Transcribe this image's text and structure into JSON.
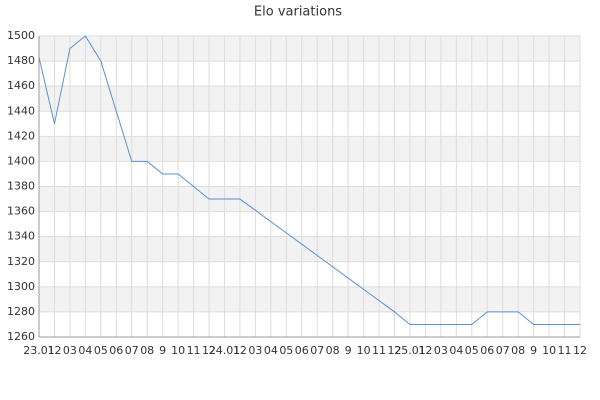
{
  "chart_data": {
    "type": "line",
    "title": "Elo variations",
    "categories": [
      "23.01",
      "12",
      "03",
      "04",
      "05",
      "06",
      "07",
      "08",
      "9",
      "10",
      "11",
      "12",
      "24.01",
      "12",
      "03",
      "04",
      "05",
      "06",
      "07",
      "08",
      "9",
      "10",
      "11",
      "12",
      "25.01",
      "12",
      "03",
      "04",
      "05",
      "06",
      "07",
      "08",
      "9",
      "10",
      "11",
      "12"
    ],
    "values": [
      1483,
      1430,
      1490,
      1500,
      1480,
      1440,
      1400,
      1400,
      1390,
      1390,
      1380,
      1370,
      1370,
      1370,
      1361,
      1352,
      1343,
      1334,
      1325,
      1316,
      1307,
      1298,
      1289,
      1280,
      1270,
      1270,
      1270,
      1270,
      1270,
      1280,
      1280,
      1280,
      1270,
      1270,
      1270,
      1270
    ],
    "color": "#5b8fd6",
    "ylim": [
      1260,
      1500
    ],
    "yticks": [
      1260,
      1280,
      1300,
      1320,
      1340,
      1360,
      1380,
      1400,
      1420,
      1440,
      1460,
      1480,
      1500
    ],
    "grid": true
  }
}
